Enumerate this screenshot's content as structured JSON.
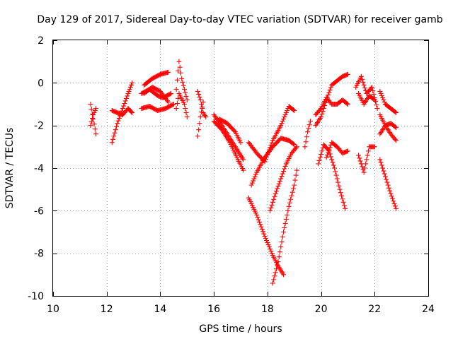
{
  "chart_data": {
    "type": "scatter",
    "title": "Day 129 of 2017, Sidereal Day-to-day VTEC variation (SDTVAR) for receiver gamb",
    "xlabel": "GPS time / hours",
    "ylabel": "SDTVAR / TECUs",
    "xlim": [
      10,
      24
    ],
    "ylim": [
      -10,
      2
    ],
    "xticks": [
      10,
      12,
      14,
      16,
      18,
      20,
      22,
      24
    ],
    "yticks": [
      -10,
      -8,
      -6,
      -4,
      -2,
      0,
      2
    ],
    "xtick_labels": [
      "10",
      "12",
      "14",
      "16",
      "18",
      "20",
      "22",
      "24"
    ],
    "ytick_labels": [
      "-10",
      "-8",
      "-6",
      "-4",
      "-2",
      "0",
      "2"
    ],
    "grid": true,
    "marker": "+",
    "colors": {
      "series": "#ff0000",
      "axes": "#000000",
      "grid": "#a0a0a0"
    },
    "series": [
      {
        "x": [
          11.4,
          11.5,
          11.6
        ],
        "y": [
          -1.0,
          -1.7,
          -2.4
        ]
      },
      {
        "x": [
          11.4,
          11.5,
          11.6
        ],
        "y": [
          -2.0,
          -1.5,
          -1.2
        ]
      },
      {
        "x": [
          12.2,
          12.4,
          12.6,
          12.8,
          12.95
        ],
        "y": [
          -1.3,
          -1.4,
          -1.5,
          -1.2,
          -1.4
        ]
      },
      {
        "x": [
          12.2,
          12.4,
          12.6,
          12.8,
          12.95
        ],
        "y": [
          -2.8,
          -1.9,
          -1.2,
          -0.5,
          0.0
        ]
      },
      {
        "x": [
          13.3,
          13.6,
          13.9,
          14.2,
          14.5
        ],
        "y": [
          -1.2,
          -1.1,
          -1.3,
          -1.2,
          -1.0
        ]
      },
      {
        "x": [
          13.3,
          13.6,
          13.9,
          14.1,
          14.4
        ],
        "y": [
          -0.5,
          -0.3,
          -0.6,
          -0.7,
          -0.5
        ]
      },
      {
        "x": [
          13.4,
          13.7,
          14.0,
          14.3
        ],
        "y": [
          -0.1,
          0.2,
          0.4,
          0.5
        ]
      },
      {
        "x": [
          13.4,
          13.7,
          14.0,
          14.3
        ],
        "y": [
          -0.5,
          -0.2,
          -0.4,
          -0.9
        ]
      },
      {
        "x": [
          14.6,
          14.7,
          14.8,
          15.0
        ],
        "y": [
          -0.3,
          1.0,
          0.2,
          -0.8
        ]
      },
      {
        "x": [
          14.6,
          14.7,
          14.9,
          15.0
        ],
        "y": [
          -1.2,
          -0.5,
          -1.0,
          -1.6
        ]
      },
      {
        "x": [
          15.4,
          15.5,
          15.6,
          15.7
        ],
        "y": [
          -0.4,
          -0.8,
          -1.4,
          -1.6
        ]
      },
      {
        "x": [
          15.4,
          15.5,
          15.6
        ],
        "y": [
          -2.5,
          -1.6,
          -0.9
        ]
      },
      {
        "x": [
          16.0,
          16.3,
          16.6,
          16.9,
          17.1
        ],
        "y": [
          -1.5,
          -2.0,
          -2.6,
          -3.2,
          -3.6
        ]
      },
      {
        "x": [
          16.0,
          16.3,
          16.6,
          16.9,
          17.1
        ],
        "y": [
          -1.8,
          -2.2,
          -2.8,
          -3.6,
          -4.1
        ]
      },
      {
        "x": [
          16.2,
          16.5,
          16.8,
          17.0
        ],
        "y": [
          -1.7,
          -1.9,
          -2.3,
          -2.8
        ]
      },
      {
        "x": [
          17.3,
          17.6,
          17.9,
          18.2,
          18.5,
          18.8,
          19.0
        ],
        "y": [
          -2.8,
          -3.3,
          -3.7,
          -2.7,
          -2.0,
          -1.1,
          -1.3
        ]
      },
      {
        "x": [
          17.4,
          17.6,
          17.9,
          18.2,
          18.5,
          18.8,
          19.0
        ],
        "y": [
          -4.8,
          -4.2,
          -3.5,
          -3.0,
          -2.6,
          -2.7,
          -2.9
        ]
      },
      {
        "x": [
          17.3,
          17.6,
          17.9,
          18.2,
          18.4,
          18.6
        ],
        "y": [
          -5.4,
          -6.2,
          -7.2,
          -8.1,
          -8.6,
          -9.0
        ]
      },
      {
        "x": [
          18.1,
          18.3,
          18.5,
          18.7,
          18.9,
          19.1
        ],
        "y": [
          -6.0,
          -5.2,
          -4.5,
          -3.8,
          -3.3,
          -3.0
        ]
      },
      {
        "x": [
          18.2,
          18.4,
          18.6,
          18.8,
          19.0,
          19.1
        ],
        "y": [
          -9.4,
          -8.4,
          -7.0,
          -5.8,
          -4.8,
          -4.1
        ]
      },
      {
        "x": [
          19.4,
          19.5,
          19.6
        ],
        "y": [
          -3.0,
          -2.3,
          -1.8
        ]
      },
      {
        "x": [
          19.8,
          20.0,
          20.2,
          20.4,
          20.6,
          20.8,
          21.0
        ],
        "y": [
          -1.5,
          -1.2,
          -0.7,
          -1.0,
          -1.0,
          -0.8,
          -1.0
        ]
      },
      {
        "x": [
          19.8,
          20.0,
          20.2,
          20.4,
          20.6,
          20.8,
          21.0
        ],
        "y": [
          -2.0,
          -1.6,
          -0.8,
          -0.1,
          0.1,
          0.3,
          0.4
        ]
      },
      {
        "x": [
          19.9,
          20.1,
          20.3,
          20.5,
          20.7,
          20.9
        ],
        "y": [
          -3.8,
          -2.9,
          -3.2,
          -4.0,
          -5.0,
          -5.9
        ]
      },
      {
        "x": [
          20.2,
          20.4,
          20.6,
          20.8,
          21.0
        ],
        "y": [
          -3.5,
          -2.8,
          -3.0,
          -3.3,
          -3.2
        ]
      },
      {
        "x": [
          21.3,
          21.5,
          21.7,
          21.9,
          22.1
        ],
        "y": [
          -0.2,
          0.3,
          -0.5,
          -0.2,
          -1.2
        ]
      },
      {
        "x": [
          21.4,
          21.6,
          21.8,
          22.0
        ],
        "y": [
          -0.5,
          -1.0,
          -0.6,
          -0.8
        ]
      },
      {
        "x": [
          21.4,
          21.6,
          21.8,
          22.0
        ],
        "y": [
          -3.4,
          -4.2,
          -3.0,
          -3.0
        ]
      },
      {
        "x": [
          22.2,
          22.4,
          22.6,
          22.8
        ],
        "y": [
          -0.4,
          -1.0,
          -1.2,
          -1.4
        ]
      },
      {
        "x": [
          22.2,
          22.4,
          22.6,
          22.8
        ],
        "y": [
          -2.4,
          -2.0,
          -1.9,
          -2.1
        ]
      },
      {
        "x": [
          22.2,
          22.4,
          22.6,
          22.8
        ],
        "y": [
          -1.5,
          -2.0,
          -2.4,
          -2.7
        ]
      },
      {
        "x": [
          22.2,
          22.4,
          22.6,
          22.8
        ],
        "y": [
          -3.6,
          -4.4,
          -5.2,
          -5.9
        ]
      }
    ]
  }
}
